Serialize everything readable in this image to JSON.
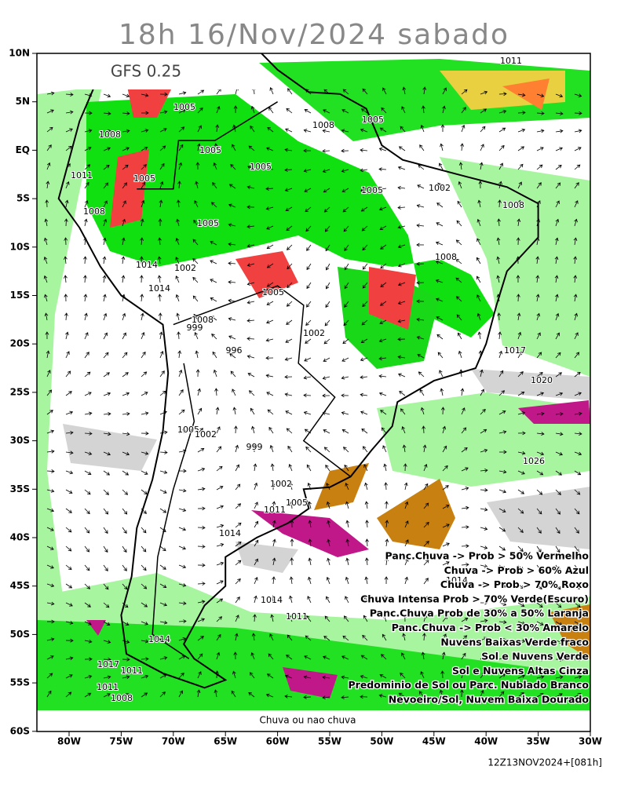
{
  "header": {
    "title": "18h 16/Nov/2024 sabado",
    "model": "GFS 0.25"
  },
  "lat_labels": [
    "10N",
    "5N",
    "EQ",
    "5S",
    "10S",
    "15S",
    "20S",
    "25S",
    "30S",
    "35S",
    "40S",
    "45S",
    "50S",
    "55S",
    "60S"
  ],
  "lon_labels": [
    "80W",
    "75W",
    "70W",
    "65W",
    "60W",
    "55W",
    "50W",
    "45W",
    "40W",
    "35W",
    "30W"
  ],
  "legend": [
    "Panc.Chuva -> Prob > 50% Vermelho",
    "Chuva -> Prob > 60% Azul",
    "Chuva -> Prob > 70% Roxo",
    "Chuva Intensa Prob > 70% Verde(Escuro)",
    "Panc.Chuva Prob de 30% a 50% Laranja",
    "Panc.Chuva -> Prob < 30% Amarelo",
    "Nuvens Baixas Verde fraco",
    "Sol e Nuvens Verde",
    "Sol e Nuvens Altas Cinza",
    "Predominio de Sol ou Parc. Nublado Branco",
    "Nevoeiro/Sol, Nuvem Baixa Dourado"
  ],
  "isobar_labels": [
    "1011",
    "1005",
    "1008",
    "1005",
    "1005",
    "1005",
    "1011",
    "1008",
    "1005",
    "1008",
    "1005",
    "1002",
    "1008",
    "1005",
    "1014",
    "1008",
    "999",
    "1002",
    "1005",
    "996",
    "1002",
    "1008",
    "1014",
    "1017",
    "1020",
    "1026",
    "1005",
    "1002",
    "999",
    "1002",
    "1005",
    "1011",
    "1014",
    "1014",
    "1011",
    "1014",
    "1017",
    "1011",
    "1008",
    "1011",
    "1014"
  ],
  "footer": {
    "caption": "Chuva ou nao chuva",
    "run": "12Z13NOV2024+[081h]"
  }
}
